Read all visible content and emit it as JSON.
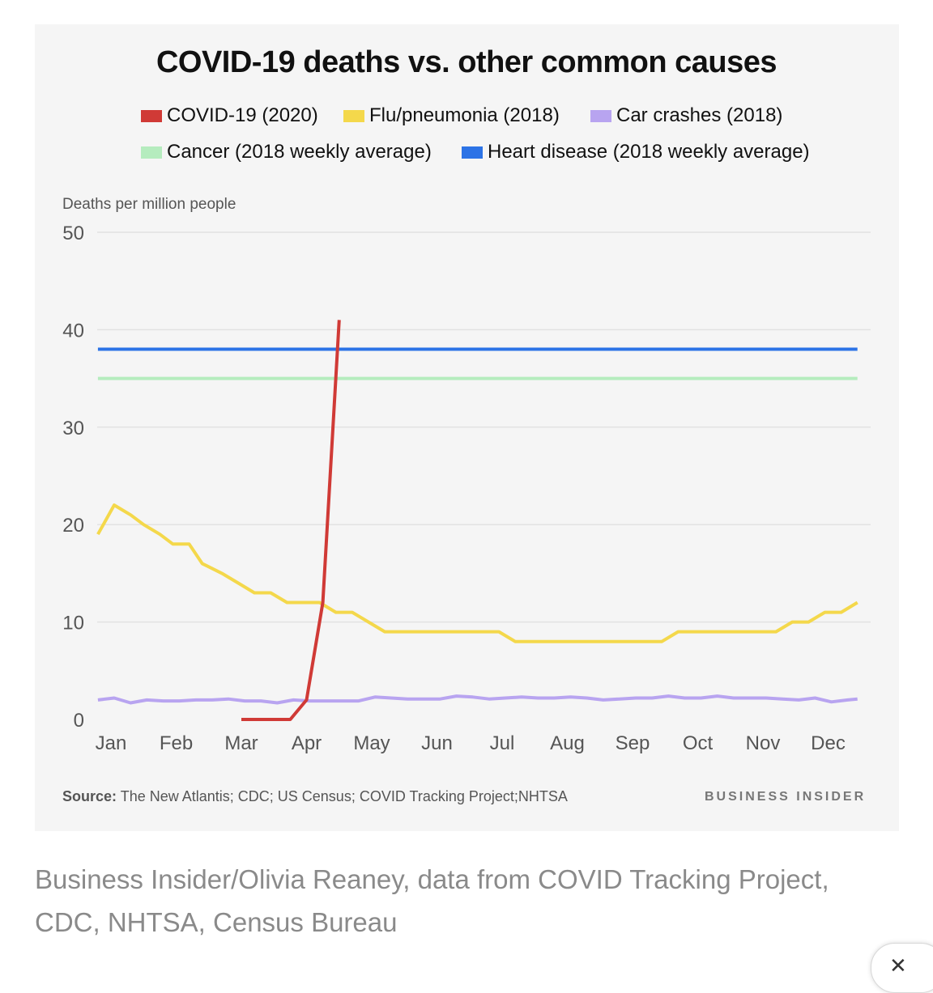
{
  "chart_data": {
    "type": "line",
    "title": "COVID-19 deaths vs. other common causes",
    "ylabel": "Deaths per million people",
    "ylim": [
      0,
      50
    ],
    "yticks": [
      "0",
      "10",
      "20",
      "30",
      "40",
      "50"
    ],
    "categories": [
      "Jan",
      "Feb",
      "Mar",
      "Apr",
      "May",
      "Jun",
      "Jul",
      "Aug",
      "Sep",
      "Oct",
      "Nov",
      "Dec"
    ],
    "grid": true,
    "legend_position": "top",
    "series": [
      {
        "name": "COVID-19 (2020)",
        "color": "#d03a36",
        "x": [
          2.0,
          2.25,
          2.5,
          2.75,
          3.0,
          3.25,
          3.5
        ],
        "y": [
          0,
          0,
          0,
          0,
          2,
          12,
          41
        ]
      },
      {
        "name": "Flu/pneumonia (2018)",
        "color": "#f4d84b",
        "x": [
          -0.2,
          0.05,
          0.3,
          0.5,
          0.75,
          0.95,
          1.2,
          1.4,
          1.7,
          1.95,
          2.2,
          2.45,
          2.7,
          2.95,
          3.2,
          3.45,
          3.7,
          3.95,
          4.2,
          4.45,
          4.7,
          4.95,
          5.2,
          5.45,
          5.7,
          5.95,
          6.2,
          6.45,
          6.7,
          6.95,
          7.2,
          7.45,
          7.7,
          7.95,
          8.2,
          8.45,
          8.7,
          8.95,
          9.2,
          9.45,
          9.7,
          9.95,
          10.2,
          10.45,
          10.7,
          10.95,
          11.2,
          11.45
        ],
        "y": [
          19,
          22,
          21,
          20,
          19,
          18,
          18,
          16,
          15,
          14,
          13,
          13,
          12,
          12,
          12,
          11,
          11,
          10,
          9,
          9,
          9,
          9,
          9,
          9,
          9,
          9,
          8,
          8,
          8,
          8,
          8,
          8,
          8,
          8,
          8,
          8,
          9,
          9,
          9,
          9,
          9,
          9,
          9,
          10,
          10,
          11,
          11,
          12
        ]
      },
      {
        "name": "Car crashes (2018)",
        "color": "#b8a4f0",
        "x": [
          -0.2,
          0.05,
          0.3,
          0.55,
          0.8,
          1.05,
          1.3,
          1.55,
          1.8,
          2.05,
          2.3,
          2.55,
          2.8,
          3.05,
          3.3,
          3.55,
          3.8,
          4.05,
          4.3,
          4.55,
          4.8,
          5.05,
          5.3,
          5.55,
          5.8,
          6.05,
          6.3,
          6.55,
          6.8,
          7.05,
          7.3,
          7.55,
          7.8,
          8.05,
          8.3,
          8.55,
          8.8,
          9.05,
          9.3,
          9.55,
          9.8,
          10.05,
          10.3,
          10.55,
          10.8,
          11.05,
          11.3,
          11.45
        ],
        "y": [
          2.0,
          2.2,
          1.7,
          2.0,
          1.9,
          1.9,
          2.0,
          2.0,
          2.1,
          1.9,
          1.9,
          1.7,
          2.0,
          1.9,
          1.9,
          1.9,
          1.9,
          2.3,
          2.2,
          2.1,
          2.1,
          2.1,
          2.4,
          2.3,
          2.1,
          2.2,
          2.3,
          2.2,
          2.2,
          2.3,
          2.2,
          2.0,
          2.1,
          2.2,
          2.2,
          2.4,
          2.2,
          2.2,
          2.4,
          2.2,
          2.2,
          2.2,
          2.1,
          2.0,
          2.2,
          1.8,
          2.0,
          2.1
        ]
      },
      {
        "name": "Cancer (2018 weekly average)",
        "color": "#b5ecbe",
        "x": [
          -0.2,
          11.45
        ],
        "y": [
          35,
          35
        ]
      },
      {
        "name": "Heart disease (2018 weekly average)",
        "color": "#2c73e6",
        "x": [
          -0.2,
          11.45
        ],
        "y": [
          38,
          38
        ]
      }
    ],
    "source_label": "Source:",
    "source_text": "The New Atlantis; CDC; US Census; COVID Tracking Project;NHTSA",
    "brand": "BUSINESS INSIDER"
  },
  "caption": "Business Insider/Olivia Reaney, data from COVID Tracking Project, CDC, NHTSA, Census Bureau",
  "close_icon": "close-icon",
  "close_glyph": "✕"
}
